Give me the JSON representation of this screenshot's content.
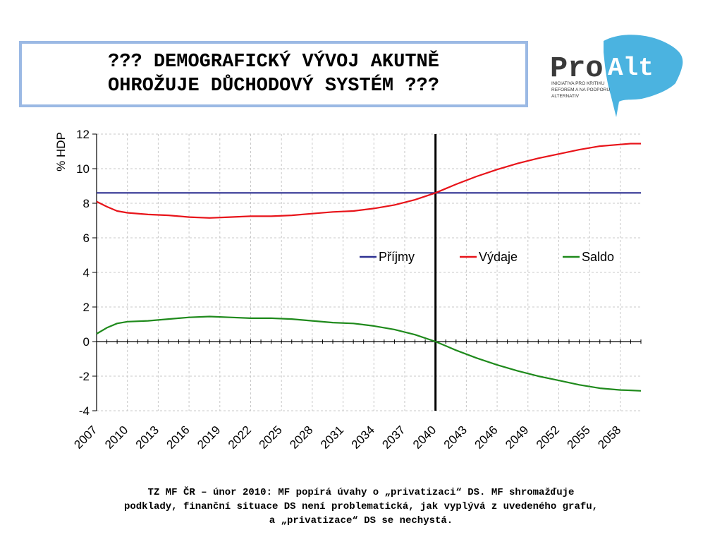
{
  "header": {
    "title_line1": "??? DEMOGRAFICKÝ VÝVOJ AKUTNĚ",
    "title_line2": "OHROŽUJE DŮCHODOVÝ SYSTÉM ???"
  },
  "logo": {
    "word_pro": "Pro",
    "word_alt": "Alt",
    "tagline_1": "INICIATIVA PRO KRITIKU",
    "tagline_2": "REFOREM A NA PODPORU",
    "tagline_3": "ALTERNATIV",
    "flag_color": "#4bb3e0"
  },
  "caption": {
    "line1": "TZ MF ČR – únor 2010: MF popírá úvahy o „privatizaci“ DS. MF shromažďuje",
    "line2": "podklady, finanční situace DS není problematická, jak vyplývá z uvedeného grafu,",
    "line3": "a „privatizace“ DS se nechystá."
  },
  "chart_data": {
    "type": "line",
    "title": "",
    "xlabel": "",
    "ylabel": "% HDP",
    "xlim": [
      2007,
      2060
    ],
    "ylim": [
      -4,
      12
    ],
    "yticks": [
      -4,
      -2,
      0,
      2,
      4,
      6,
      8,
      10,
      12
    ],
    "xticks": [
      "2007",
      "2010",
      "2013",
      "2016",
      "2019",
      "2022",
      "2025",
      "2028",
      "2031",
      "2034",
      "2037",
      "2040",
      "2043",
      "2046",
      "2049",
      "2052",
      "2055",
      "2058"
    ],
    "grid": true,
    "legend_position": "center-right",
    "vertical_marker_x": 2040,
    "x": [
      2007,
      2008,
      2009,
      2010,
      2012,
      2014,
      2016,
      2018,
      2020,
      2022,
      2024,
      2026,
      2028,
      2030,
      2032,
      2034,
      2036,
      2038,
      2040,
      2042,
      2044,
      2046,
      2048,
      2050,
      2052,
      2054,
      2056,
      2058,
      2059,
      2060
    ],
    "series": [
      {
        "name": "Příjmy",
        "color": "#2e3192",
        "values": [
          8.6,
          8.6,
          8.6,
          8.6,
          8.6,
          8.6,
          8.6,
          8.6,
          8.6,
          8.6,
          8.6,
          8.6,
          8.6,
          8.6,
          8.6,
          8.6,
          8.6,
          8.6,
          8.6,
          8.6,
          8.6,
          8.6,
          8.6,
          8.6,
          8.6,
          8.6,
          8.6,
          8.6,
          8.6,
          8.6
        ]
      },
      {
        "name": "Výdaje",
        "color": "#e8141a",
        "values": [
          8.1,
          7.8,
          7.55,
          7.45,
          7.35,
          7.3,
          7.2,
          7.15,
          7.2,
          7.25,
          7.25,
          7.3,
          7.4,
          7.5,
          7.55,
          7.7,
          7.9,
          8.2,
          8.6,
          9.1,
          9.55,
          9.95,
          10.3,
          10.6,
          10.85,
          11.1,
          11.3,
          11.4,
          11.45,
          11.45
        ]
      },
      {
        "name": "Saldo",
        "color": "#1f8a1c",
        "values": [
          0.45,
          0.8,
          1.05,
          1.15,
          1.2,
          1.3,
          1.4,
          1.45,
          1.4,
          1.35,
          1.35,
          1.3,
          1.2,
          1.1,
          1.05,
          0.9,
          0.7,
          0.4,
          0.0,
          -0.5,
          -0.95,
          -1.35,
          -1.7,
          -2.0,
          -2.25,
          -2.5,
          -2.7,
          -2.8,
          -2.82,
          -2.85
        ]
      }
    ]
  }
}
